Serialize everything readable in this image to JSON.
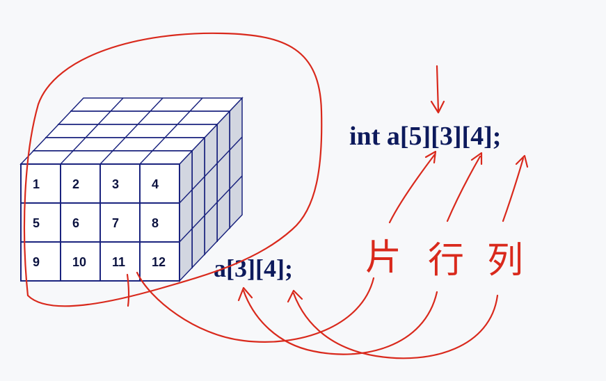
{
  "figure": {
    "front_face_cells": [
      "1",
      "2",
      "3",
      "4",
      "5",
      "6",
      "7",
      "8",
      "9",
      "10",
      "11",
      "12"
    ],
    "array_3d_declaration": {
      "prefix": "int a",
      "index1": "5",
      "index2": "3",
      "index3": "4",
      "suffix": ";"
    },
    "array_2d_declaration": {
      "prefix": "a",
      "index1": "3",
      "index2": "4",
      "suffix": ";"
    },
    "handwritten_labels": {
      "layer": "片",
      "row": "行",
      "column": "列"
    }
  },
  "colors": {
    "background": "#f7f8fa",
    "cube_line": "#1a237e",
    "cube_face": "#ffffff",
    "cube_side": "#d2d6e0",
    "code_text": "#0d1a5c",
    "annotation": "#d9291c"
  }
}
